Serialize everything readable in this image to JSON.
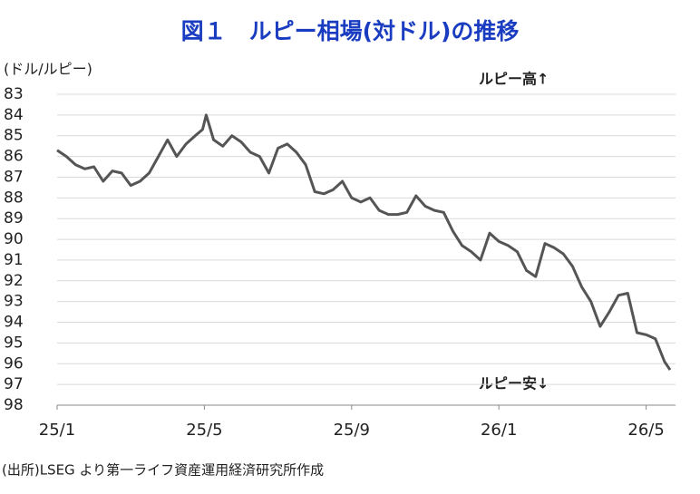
{
  "chart_data": {
    "type": "line",
    "title": "図１　ルピー相場(対ドル)の推移",
    "y_label": "(ドル/ルピー)",
    "annotations": [
      "ルピー高↑",
      "ルピー安↓"
    ],
    "source": "(出所)LSEG より第一ライフ資産運用経済研究所作成",
    "x": [
      0,
      0.25,
      0.5,
      0.75,
      1,
      1.25,
      1.5,
      1.75,
      2,
      2.25,
      2.5,
      2.75,
      3,
      3.25,
      3.5,
      3.75,
      3.95,
      4.05,
      4.25,
      4.5,
      4.75,
      5,
      5.25,
      5.5,
      5.75,
      6,
      6.25,
      6.5,
      6.75,
      7,
      7.25,
      7.5,
      7.75,
      8,
      8.25,
      8.5,
      8.75,
      9,
      9.25,
      9.5,
      9.75,
      10,
      10.25,
      10.5,
      10.75,
      11,
      11.25,
      11.5,
      11.75,
      12,
      12.25,
      12.5,
      12.75,
      13,
      13.25,
      13.5,
      13.75,
      14,
      14.25,
      14.5,
      14.75,
      15,
      15.25,
      15.5,
      15.75,
      16,
      16.25,
      16.5,
      16.65
    ],
    "series": [
      {
        "name": "ドル/ルピー",
        "color": "#555555",
        "values": [
          85.7,
          86.0,
          86.4,
          86.6,
          86.5,
          87.2,
          86.7,
          86.8,
          87.4,
          87.2,
          86.8,
          86.0,
          85.2,
          86.0,
          85.4,
          85.0,
          84.7,
          84.0,
          85.2,
          85.5,
          85.0,
          85.3,
          85.8,
          86.0,
          86.8,
          85.6,
          85.4,
          85.8,
          86.4,
          87.7,
          87.8,
          87.6,
          87.2,
          88.0,
          88.2,
          88.0,
          88.6,
          88.8,
          88.8,
          88.7,
          87.9,
          88.4,
          88.6,
          88.7,
          89.6,
          90.3,
          90.6,
          91.0,
          89.7,
          90.1,
          90.3,
          90.6,
          91.5,
          91.8,
          90.2,
          90.4,
          90.7,
          91.3,
          92.3,
          93.0,
          94.2,
          93.5,
          92.7,
          92.6,
          94.5,
          94.6,
          94.8,
          95.9,
          96.3
        ]
      }
    ],
    "xlim": [
      0,
      16.8
    ],
    "xticks": [
      {
        "value": 0,
        "label": "25/1"
      },
      {
        "value": 4,
        "label": "25/5"
      },
      {
        "value": 8,
        "label": "25/9"
      },
      {
        "value": 12,
        "label": "26/1"
      },
      {
        "value": 16,
        "label": "26/5"
      }
    ],
    "ylim": [
      83,
      98
    ],
    "y_inverted": true,
    "yticks": [
      83,
      84,
      85,
      86,
      87,
      88,
      89,
      90,
      91,
      92,
      93,
      94,
      95,
      96,
      97,
      98
    ],
    "grid": true
  }
}
